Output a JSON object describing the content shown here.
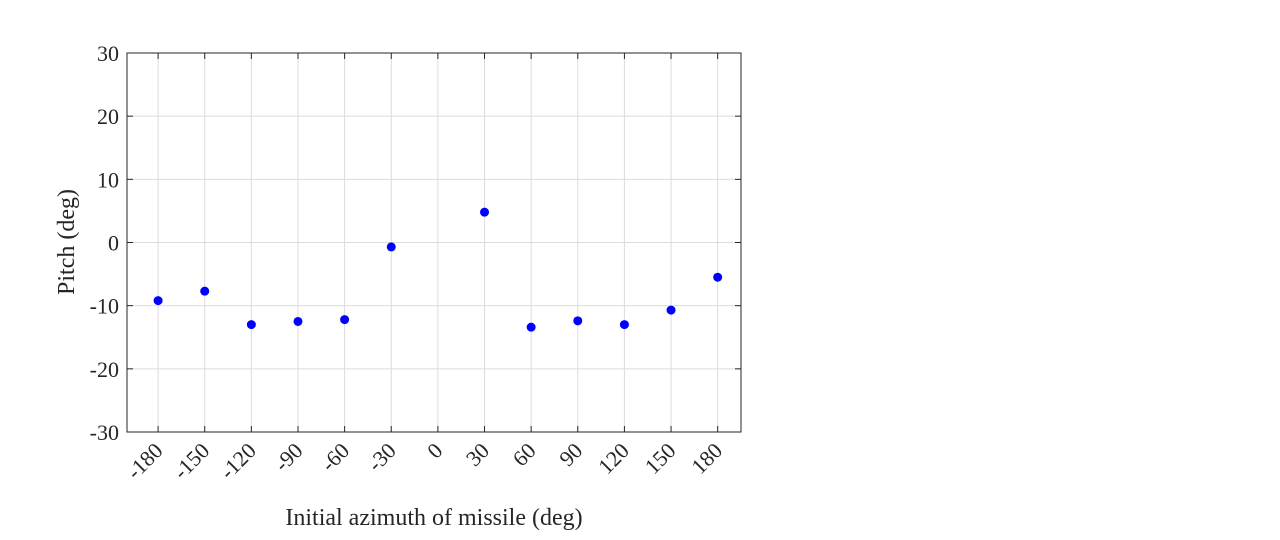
{
  "chart_data": {
    "type": "scatter",
    "title": "",
    "xlabel": "Initial azimuth of missile (deg)",
    "ylabel": "Pitch (deg)",
    "xlim": [
      -200,
      195
    ],
    "ylim": [
      -30,
      30
    ],
    "x_ticks": [
      -180,
      -150,
      -120,
      -90,
      -60,
      -30,
      0,
      30,
      60,
      90,
      120,
      150,
      180
    ],
    "x_tick_labels": [
      "-180",
      "-150",
      "-120",
      "-90",
      "-60",
      "-30",
      "0",
      "30",
      "60",
      "90",
      "120",
      "150",
      "180"
    ],
    "y_ticks": [
      -30,
      -20,
      -10,
      0,
      10,
      20,
      30
    ],
    "y_tick_labels": [
      "-30",
      "-20",
      "-10",
      "0",
      "10",
      "20",
      "30"
    ],
    "grid": true,
    "marker_color": "#0000ff",
    "series": [
      {
        "x": [
          -180,
          -150,
          -120,
          -90,
          -60,
          -30,
          30,
          60,
          90,
          120,
          150,
          180
        ],
        "y": [
          -9.2,
          -7.7,
          -13.0,
          -12.5,
          -12.2,
          -0.7,
          4.8,
          -13.4,
          -12.4,
          -13.0,
          -10.7,
          -5.5
        ]
      }
    ]
  }
}
